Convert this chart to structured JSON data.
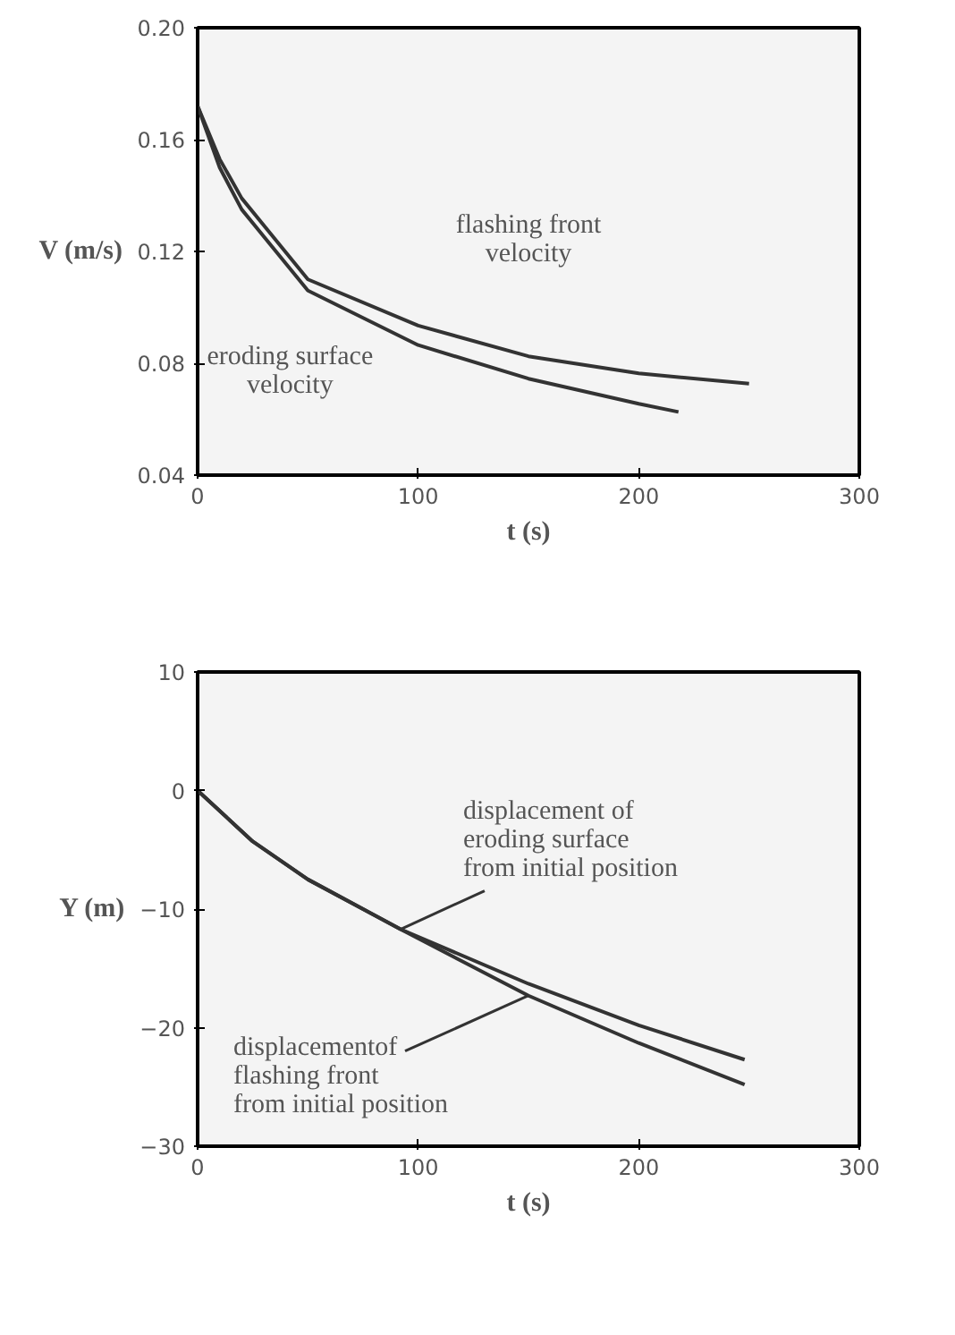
{
  "chart_data": [
    {
      "type": "line",
      "xlabel": "t (s)",
      "ylabel": "V (m/s)",
      "xlim": [
        0,
        300
      ],
      "ylim": [
        0.04,
        0.2
      ],
      "xticks": [
        0,
        100,
        200,
        300
      ],
      "yticks": [
        0.04,
        0.08,
        0.12,
        0.16,
        {
          "value": 0.2,
          "label": "0.20"
        }
      ],
      "grid": false,
      "marker": "none",
      "line_style": "solid",
      "series": [
        {
          "name": "flashing front\nvelocity",
          "color": "#333333",
          "x": [
            0,
            10,
            20,
            50,
            100,
            150,
            200,
            250
          ],
          "values": [
            0.172,
            0.153,
            0.139,
            0.11,
            0.0935,
            0.0825,
            0.0764,
            0.0727
          ]
        },
        {
          "name": "eroding surface\nvelocity",
          "color": "#333333",
          "x": [
            0,
            10,
            20,
            50,
            100,
            150,
            200,
            218
          ],
          "values": [
            0.172,
            0.15,
            0.135,
            0.106,
            0.0865,
            0.0745,
            0.0655,
            0.0626
          ]
        }
      ]
    },
    {
      "type": "line",
      "xlabel": "t (s)",
      "ylabel": "Y (m)",
      "xlim": [
        0,
        300
      ],
      "ylim": [
        -30,
        10
      ],
      "xticks": [
        0,
        100,
        200,
        300
      ],
      "yticks": [
        -30,
        -20,
        -10,
        0,
        10
      ],
      "grid": false,
      "marker": "none",
      "line_style": "solid",
      "series": [
        {
          "name": "displacement of\neroding surface\nfrom initial position",
          "color": "#333333",
          "x": [
            0,
            25,
            50,
            92,
            150,
            200,
            248
          ],
          "values": [
            0,
            -4.3,
            -7.5,
            -11.7,
            -16.3,
            -19.8,
            -22.7
          ]
        },
        {
          "name": "displacementof\nflashing front\nfrom initial position",
          "color": "#333333",
          "x": [
            0,
            25,
            50,
            92,
            150,
            200,
            248
          ],
          "values": [
            0,
            -4.3,
            -7.5,
            -11.7,
            -17.3,
            -21.3,
            -24.8
          ]
        }
      ]
    }
  ]
}
